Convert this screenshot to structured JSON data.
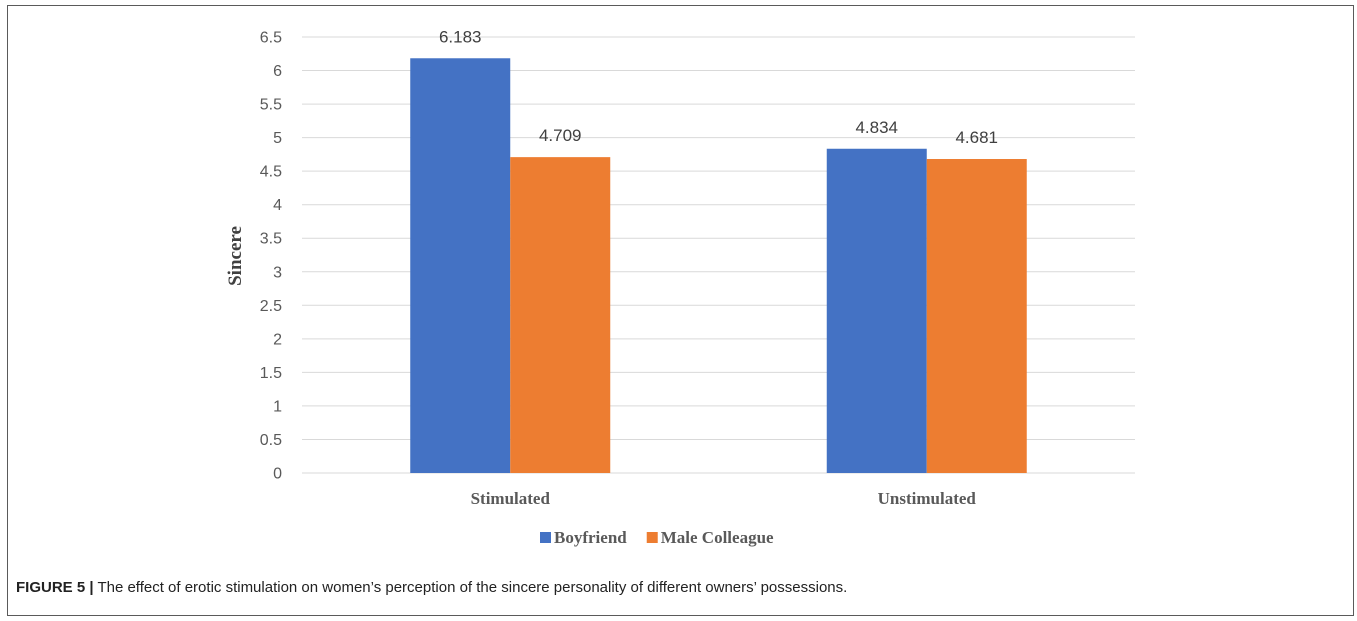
{
  "caption": {
    "label": "FIGURE 5 |",
    "text": " The effect of erotic stimulation on women’s perception of the sincere personality of different owners’ possessions."
  },
  "chart_data": {
    "type": "bar",
    "categories": [
      "Stimulated",
      "Unstimulated"
    ],
    "series": [
      {
        "name": "Boyfriend",
        "values": [
          6.183,
          4.834
        ],
        "labels": [
          "6.183",
          "4.834"
        ],
        "color": "#4472C4"
      },
      {
        "name": "Male Colleague",
        "values": [
          4.709,
          4.681
        ],
        "labels": [
          "4.709",
          "4.681"
        ],
        "color": "#ED7D31"
      }
    ],
    "ylabel": "Sincere",
    "xlabel": "",
    "ylim": [
      0,
      6.5
    ],
    "yticks": [
      "0",
      "0.5",
      "1",
      "1.5",
      "2",
      "2.5",
      "3",
      "3.5",
      "4",
      "4.5",
      "5",
      "5.5",
      "6",
      "6.5"
    ],
    "grid": true,
    "legend_position": "bottom"
  }
}
